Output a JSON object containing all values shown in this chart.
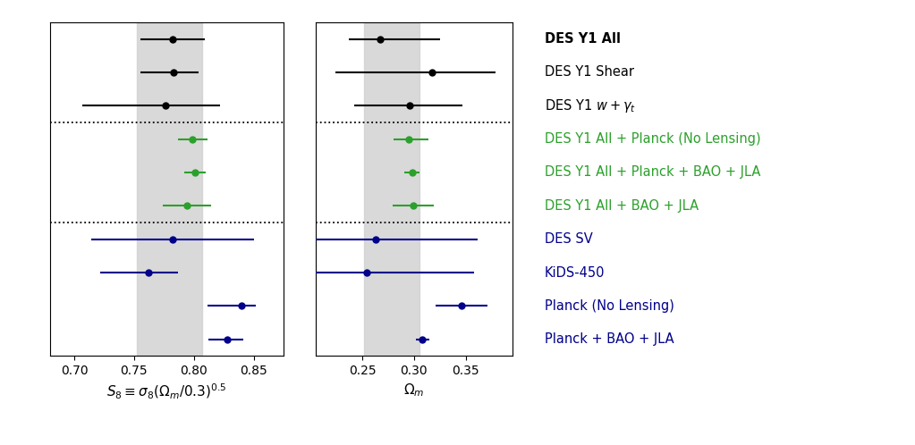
{
  "labels": [
    "DES Y1 All",
    "DES Y1 Shear",
    "DES Y1 $w + \\gamma_t$",
    "DES Y1 All + Planck (No Lensing)",
    "DES Y1 All + Planck + BAO + JLA",
    "DES Y1 All + BAO + JLA",
    "DES SV",
    "KiDS-450",
    "Planck (No Lensing)",
    "Planck + BAO + JLA"
  ],
  "label_styles": [
    {
      "color": "black",
      "bold": true
    },
    {
      "color": "black",
      "bold": false
    },
    {
      "color": "black",
      "bold": false
    },
    {
      "color": "#2ca02c",
      "bold": false
    },
    {
      "color": "#2ca02c",
      "bold": false
    },
    {
      "color": "#2ca02c",
      "bold": false
    },
    "#00008b",
    "#00008b",
    "#00008b",
    "#00008b"
  ],
  "s8": {
    "values": [
      0.782,
      0.783,
      0.776,
      0.799,
      0.801,
      0.794,
      0.782,
      0.762,
      0.84,
      0.828
    ],
    "err_lo": [
      0.027,
      0.028,
      0.069,
      0.012,
      0.009,
      0.02,
      0.068,
      0.04,
      0.029,
      0.016
    ],
    "err_hi": [
      0.027,
      0.021,
      0.046,
      0.012,
      0.009,
      0.02,
      0.068,
      0.025,
      0.012,
      0.013
    ],
    "colors": [
      "black",
      "black",
      "black",
      "#2ca02c",
      "#2ca02c",
      "#2ca02c",
      "#00008b",
      "#00008b",
      "#00008b",
      "#00008b"
    ],
    "xlim": [
      0.68,
      0.875
    ],
    "xticks": [
      0.7,
      0.75,
      0.8,
      0.85
    ],
    "shade_lo": 0.752,
    "shade_hi": 0.807,
    "xlabel": "$S_8 \\equiv \\sigma_8(\\Omega_m/0.3)^{0.5}$"
  },
  "om": {
    "values": [
      0.267,
      0.317,
      0.296,
      0.295,
      0.298,
      0.299,
      0.263,
      0.254,
      0.346,
      0.308
    ],
    "err_lo": [
      0.03,
      0.093,
      0.054,
      0.015,
      0.007,
      0.02,
      0.058,
      0.054,
      0.025,
      0.006
    ],
    "err_hi": [
      0.058,
      0.062,
      0.051,
      0.019,
      0.007,
      0.02,
      0.098,
      0.104,
      0.025,
      0.007
    ],
    "colors": [
      "black",
      "black",
      "black",
      "#2ca02c",
      "#2ca02c",
      "#2ca02c",
      "#00008b",
      "#00008b",
      "#00008b",
      "#00008b"
    ],
    "xlim": [
      0.205,
      0.395
    ],
    "xticks": [
      0.25,
      0.3,
      0.35
    ],
    "shade_lo": 0.252,
    "shade_hi": 0.305,
    "xlabel": "$\\Omega_m$"
  },
  "dotted_lines_after": [
    2,
    5
  ],
  "n_rows": 10,
  "fig_width": 10.23,
  "fig_height": 4.98
}
